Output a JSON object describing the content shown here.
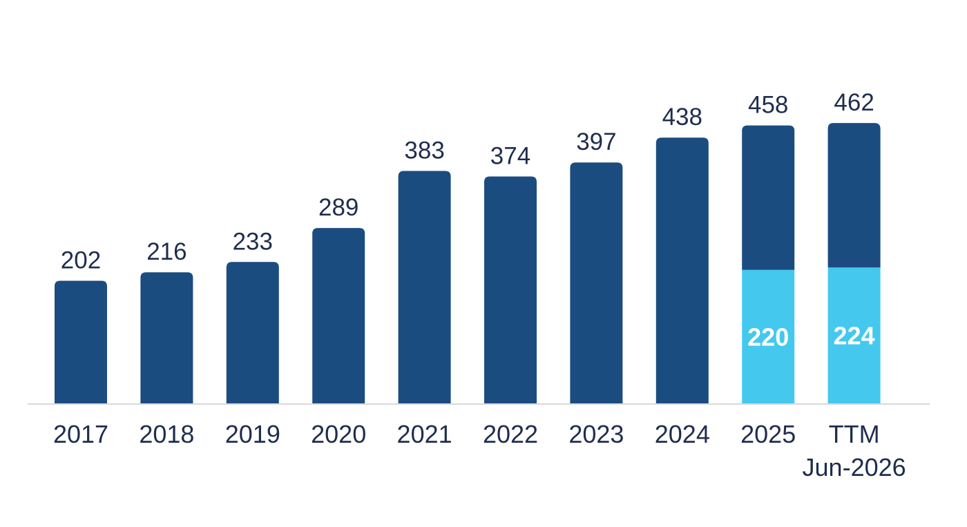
{
  "chart_data": {
    "type": "bar",
    "stacked": true,
    "title": "",
    "xlabel": "",
    "ylabel": "",
    "ylim": [
      0,
      470
    ],
    "grid": false,
    "legend": "none",
    "categories": [
      [
        "2017"
      ],
      [
        "2018"
      ],
      [
        "2019"
      ],
      [
        "2020"
      ],
      [
        "2021"
      ],
      [
        "2022"
      ],
      [
        "2023"
      ],
      [
        "2024"
      ],
      [
        "2025"
      ],
      [
        "TTM",
        "Jun-2026"
      ]
    ],
    "totals": [
      202,
      216,
      233,
      289,
      383,
      374,
      397,
      438,
      458,
      462
    ],
    "series": [
      {
        "color": "#44c8ee",
        "values": [
          null,
          null,
          null,
          null,
          null,
          null,
          null,
          null,
          220,
          224
        ]
      },
      {
        "color": "#1b4c80",
        "values": [
          202,
          216,
          233,
          289,
          383,
          374,
          397,
          438,
          238,
          238
        ]
      }
    ],
    "colors": {
      "bar_primary": "#1b4c80",
      "bar_highlight": "#44c8ee",
      "axis_line": "#d9d9d9",
      "text_dark": "#1f2d4d",
      "text_light": "#ffffff"
    }
  }
}
